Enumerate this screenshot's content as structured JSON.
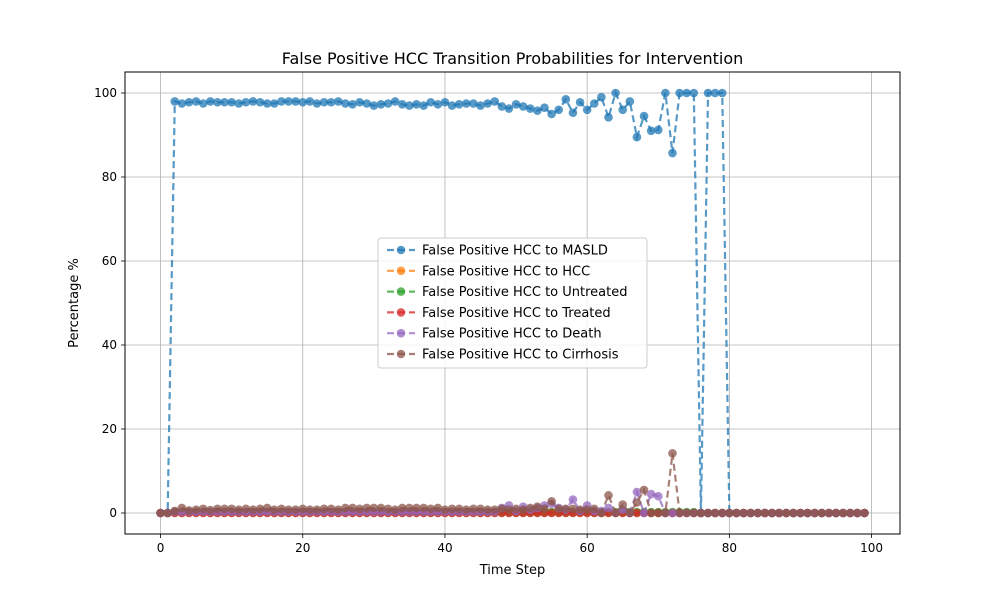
{
  "chart_data": {
    "type": "line",
    "title": "False Positive HCC Transition Probabilities for Intervention",
    "xlabel": "Time Step",
    "ylabel": "Percentage %",
    "xlim": [
      -5,
      104
    ],
    "ylim": [
      -5,
      105
    ],
    "xticks": [
      0,
      20,
      40,
      60,
      80,
      100
    ],
    "yticks": [
      0,
      20,
      40,
      60,
      80,
      100
    ],
    "grid": true,
    "legend_position": "center",
    "series": [
      {
        "name": "False Positive HCC to MASLD",
        "color": "#1f77b4",
        "x": [
          0,
          1,
          2,
          3,
          4,
          5,
          6,
          7,
          8,
          9,
          10,
          11,
          12,
          13,
          14,
          15,
          16,
          17,
          18,
          19,
          20,
          21,
          22,
          23,
          24,
          25,
          26,
          27,
          28,
          29,
          30,
          31,
          32,
          33,
          34,
          35,
          36,
          37,
          38,
          39,
          40,
          41,
          42,
          43,
          44,
          45,
          46,
          47,
          48,
          49,
          50,
          51,
          52,
          53,
          54,
          55,
          56,
          57,
          58,
          59,
          60,
          61,
          62,
          63,
          64,
          65,
          66,
          67,
          68,
          69,
          70,
          71,
          72,
          73,
          74,
          75,
          76,
          77,
          78,
          79,
          80,
          81,
          82,
          83,
          84,
          85,
          86,
          87,
          88,
          89,
          90,
          91,
          92,
          93,
          94,
          95,
          96,
          97,
          98,
          99
        ],
        "y": [
          0,
          0,
          98,
          97.5,
          97.8,
          98,
          97.5,
          98,
          97.8,
          97.8,
          97.8,
          97.5,
          97.8,
          98,
          97.8,
          97.5,
          97.5,
          98,
          98,
          98,
          97.8,
          98,
          97.5,
          97.8,
          97.8,
          98,
          97.5,
          97.3,
          97.8,
          97.5,
          97,
          97.3,
          97.5,
          98,
          97.3,
          97,
          97.3,
          97,
          97.8,
          97.3,
          97.8,
          97,
          97.3,
          97.5,
          97.5,
          97,
          97.5,
          98,
          96.8,
          96.3,
          97.3,
          96.8,
          96.3,
          95.8,
          96.5,
          95,
          96,
          98.5,
          95.3,
          97.8,
          96,
          97.5,
          99,
          94.2,
          100,
          96,
          98,
          89.5,
          94.5,
          91,
          91.2,
          100,
          85.7,
          100,
          100,
          100,
          0,
          100,
          100,
          100,
          0,
          0,
          0,
          0,
          0,
          0,
          0,
          0,
          0,
          0,
          0,
          0,
          0,
          0,
          0,
          0,
          0,
          0,
          0,
          0
        ]
      },
      {
        "name": "False Positive HCC to HCC",
        "color": "#ff7f0e",
        "x": [
          0,
          1,
          2,
          3,
          4,
          5,
          6,
          7,
          8,
          9,
          10,
          11,
          12,
          13,
          14,
          15,
          16,
          17,
          18,
          19,
          20,
          21,
          22,
          23,
          24,
          25,
          26,
          27,
          28,
          29,
          30,
          31,
          32,
          33,
          34,
          35,
          36,
          37,
          38,
          39,
          40,
          41,
          42,
          43,
          44,
          45,
          46,
          47,
          48,
          49,
          50,
          51,
          52,
          53,
          54,
          55,
          56,
          57,
          58,
          59,
          60,
          61,
          62,
          63,
          64,
          65,
          66,
          67,
          68,
          69,
          70,
          71,
          72,
          73,
          74,
          75,
          76,
          77,
          78,
          79,
          80,
          81,
          82,
          83,
          84,
          85,
          86,
          87,
          88,
          89,
          90,
          91,
          92,
          93,
          94,
          95,
          96,
          97,
          98,
          99
        ],
        "y": [
          0,
          0,
          0.1,
          0.1,
          0.1,
          0.1,
          0.1,
          0.1,
          0.1,
          0.1,
          0.1,
          0.1,
          0.1,
          0.1,
          0.1,
          0.1,
          0.1,
          0.1,
          0.1,
          0.1,
          0.1,
          0.1,
          0.1,
          0.1,
          0.1,
          0.1,
          0.1,
          0.1,
          0.1,
          0.1,
          0.1,
          0.1,
          0.1,
          0.1,
          0.1,
          0.1,
          0.1,
          0.1,
          0.1,
          0.1,
          0.1,
          0.1,
          0.1,
          0.1,
          0.1,
          0.1,
          0.1,
          0.1,
          0.1,
          0.1,
          0.1,
          0.1,
          0.1,
          0.1,
          0.1,
          0.1,
          0.1,
          0.1,
          0.1,
          0.1,
          0.1,
          0.1,
          0.1,
          0.1,
          0.1,
          0.1,
          0.1,
          0.1,
          0.1,
          0.1,
          0.1,
          0.1,
          0.1,
          0.1,
          0.1,
          0.1,
          0,
          0,
          0,
          0,
          0,
          0,
          0,
          0,
          0,
          0,
          0,
          0,
          0,
          0,
          0,
          0,
          0,
          0,
          0,
          0,
          0,
          0,
          0,
          0
        ]
      },
      {
        "name": "False Positive HCC to Untreated",
        "color": "#2ca02c",
        "x": [
          0,
          1,
          2,
          3,
          4,
          5,
          6,
          7,
          8,
          9,
          10,
          11,
          12,
          13,
          14,
          15,
          16,
          17,
          18,
          19,
          20,
          21,
          22,
          23,
          24,
          25,
          26,
          27,
          28,
          29,
          30,
          31,
          32,
          33,
          34,
          35,
          36,
          37,
          38,
          39,
          40,
          41,
          42,
          43,
          44,
          45,
          46,
          47,
          48,
          49,
          50,
          51,
          52,
          53,
          54,
          55,
          56,
          57,
          58,
          59,
          60,
          61,
          62,
          63,
          64,
          65,
          66,
          67,
          68,
          69,
          70,
          71,
          72,
          73,
          74,
          75,
          76,
          77,
          78,
          79,
          80,
          81,
          82,
          83,
          84,
          85,
          86,
          87,
          88,
          89,
          90,
          91,
          92,
          93,
          94,
          95,
          96,
          97,
          98,
          99
        ],
        "y": [
          0,
          0,
          0.2,
          0.2,
          0.2,
          0.2,
          0.2,
          0.2,
          0.2,
          0.2,
          0.2,
          0.2,
          0.2,
          0.2,
          0.2,
          0.2,
          0.2,
          0.2,
          0.2,
          0.2,
          0.2,
          0.2,
          0.2,
          0.2,
          0.2,
          0.2,
          0.2,
          0.2,
          0.2,
          0.2,
          0.2,
          0.2,
          0.2,
          0.2,
          0.2,
          0.2,
          0.2,
          0.2,
          0.2,
          0.2,
          0.2,
          0.2,
          0.2,
          0.2,
          0.2,
          0.2,
          0.2,
          0.2,
          0.2,
          0.2,
          0.2,
          0.2,
          0.2,
          0.2,
          0.2,
          0.2,
          0.2,
          0.2,
          0.2,
          0.2,
          0.2,
          0.2,
          0.2,
          0.2,
          0.2,
          0.2,
          0.2,
          0.2,
          0.2,
          0.2,
          0.2,
          0.2,
          0.2,
          0.2,
          0.2,
          0.2,
          0,
          0,
          0,
          0,
          0,
          0,
          0,
          0,
          0,
          0,
          0,
          0,
          0,
          0,
          0,
          0,
          0,
          0,
          0,
          0,
          0,
          0,
          0,
          0
        ]
      },
      {
        "name": "False Positive HCC to Treated",
        "color": "#d62728",
        "x": [
          0,
          1,
          2,
          3,
          4,
          5,
          6,
          7,
          8,
          9,
          10,
          11,
          12,
          13,
          14,
          15,
          16,
          17,
          18,
          19,
          20,
          21,
          22,
          23,
          24,
          25,
          26,
          27,
          28,
          29,
          30,
          31,
          32,
          33,
          34,
          35,
          36,
          37,
          38,
          39,
          40,
          41,
          42,
          43,
          44,
          45,
          46,
          47,
          48,
          49,
          50,
          51,
          52,
          53,
          54,
          55,
          56,
          57,
          58,
          59,
          60,
          61,
          62,
          63,
          64,
          65,
          66,
          67,
          68,
          69,
          70,
          71,
          72,
          73,
          74,
          75,
          76,
          77,
          78,
          79,
          80,
          81,
          82,
          83,
          84,
          85,
          86,
          87,
          88,
          89,
          90,
          91,
          92,
          93,
          94,
          95,
          96,
          97,
          98,
          99
        ],
        "y": [
          0,
          0,
          0,
          0,
          0,
          0,
          0,
          0,
          0,
          0,
          0,
          0,
          0,
          0,
          0,
          0,
          0,
          0,
          0,
          0,
          0,
          0,
          0,
          0,
          0,
          0,
          0,
          0,
          0,
          0,
          0,
          0,
          0,
          0,
          0,
          0,
          0,
          0,
          0,
          0,
          0,
          0,
          0,
          0,
          0,
          0,
          0,
          0,
          0,
          0,
          0,
          0,
          0,
          0,
          0,
          0,
          0,
          0,
          0,
          0,
          0,
          0,
          0,
          0,
          0,
          0,
          0,
          0,
          0,
          0,
          0,
          0,
          0,
          0,
          0,
          0,
          0,
          0,
          0,
          0,
          0,
          0,
          0,
          0,
          0,
          0,
          0,
          0,
          0,
          0,
          0,
          0,
          0,
          0,
          0,
          0,
          0,
          0,
          0,
          0
        ]
      },
      {
        "name": "False Positive HCC to Death",
        "color": "#9467bd",
        "x": [
          0,
          1,
          2,
          3,
          4,
          5,
          6,
          7,
          8,
          9,
          10,
          11,
          12,
          13,
          14,
          15,
          16,
          17,
          18,
          19,
          20,
          21,
          22,
          23,
          24,
          25,
          26,
          27,
          28,
          29,
          30,
          31,
          32,
          33,
          34,
          35,
          36,
          37,
          38,
          39,
          40,
          41,
          42,
          43,
          44,
          45,
          46,
          47,
          48,
          49,
          50,
          51,
          52,
          53,
          54,
          55,
          56,
          57,
          58,
          59,
          60,
          61,
          62,
          63,
          64,
          65,
          66,
          67,
          68,
          69,
          70,
          71,
          72,
          73,
          74,
          75,
          76,
          77,
          78,
          79,
          80,
          81,
          82,
          83,
          84,
          85,
          86,
          87,
          88,
          89,
          90,
          91,
          92,
          93,
          94,
          95,
          96,
          97,
          98,
          99
        ],
        "y": [
          0,
          0,
          0.3,
          0.3,
          0.3,
          0.3,
          0.3,
          0.3,
          0.3,
          0.3,
          0.3,
          0.3,
          0.3,
          0.3,
          0.3,
          0.3,
          0.3,
          0.3,
          0.3,
          0.3,
          0.3,
          0.3,
          0.3,
          0.3,
          0.3,
          0.3,
          0.3,
          0.3,
          0.3,
          0.3,
          0.3,
          0.3,
          0.3,
          0.3,
          0.3,
          0.3,
          0.3,
          0.3,
          0.3,
          0.3,
          0.3,
          0.3,
          0.3,
          0.3,
          0.3,
          0.3,
          0.3,
          0.3,
          1.2,
          1.8,
          0.5,
          1.5,
          0.8,
          1.2,
          1.8,
          2.2,
          1.2,
          0.8,
          3.2,
          0.5,
          1.8,
          0.5,
          0.5,
          1.2,
          0,
          0.8,
          0,
          5,
          0,
          4.5,
          4,
          0,
          0,
          0,
          0,
          0,
          0,
          0,
          0,
          0,
          0,
          0,
          0,
          0,
          0,
          0,
          0,
          0,
          0,
          0,
          0,
          0,
          0,
          0,
          0,
          0,
          0,
          0,
          0,
          0
        ]
      },
      {
        "name": "False Positive HCC to Cirrhosis",
        "color": "#8c564b",
        "x": [
          0,
          1,
          2,
          3,
          4,
          5,
          6,
          7,
          8,
          9,
          10,
          11,
          12,
          13,
          14,
          15,
          16,
          17,
          18,
          19,
          20,
          21,
          22,
          23,
          24,
          25,
          26,
          27,
          28,
          29,
          30,
          31,
          32,
          33,
          34,
          35,
          36,
          37,
          38,
          39,
          40,
          41,
          42,
          43,
          44,
          45,
          46,
          47,
          48,
          49,
          50,
          51,
          52,
          53,
          54,
          55,
          56,
          57,
          58,
          59,
          60,
          61,
          62,
          63,
          64,
          65,
          66,
          67,
          68,
          69,
          70,
          71,
          72,
          73,
          74,
          75,
          76,
          77,
          78,
          79,
          80,
          81,
          82,
          83,
          84,
          85,
          86,
          87,
          88,
          89,
          90,
          91,
          92,
          93,
          94,
          95,
          96,
          97,
          98,
          99
        ],
        "y": [
          0,
          0,
          0.5,
          1.2,
          0.6,
          0.8,
          1,
          0.7,
          1,
          1,
          1,
          0.8,
          1,
          0.8,
          1,
          1.2,
          0.8,
          1,
          0.8,
          0.8,
          1,
          0.8,
          0.8,
          1,
          1,
          0.8,
          1.2,
          1.2,
          1,
          1.2,
          1.2,
          1.2,
          1,
          0.8,
          1.2,
          1.2,
          1.2,
          1.2,
          1,
          1.2,
          0.8,
          1,
          1,
          0.8,
          1,
          1,
          0.8,
          0.8,
          1,
          0.8,
          1,
          0.8,
          1.2,
          1.5,
          1,
          2.8,
          1,
          1,
          1,
          0.8,
          0.8,
          1,
          0,
          4.2,
          0,
          2,
          0,
          2.5,
          5.5,
          0,
          0,
          0,
          14.2,
          0,
          0,
          0,
          0,
          0,
          0,
          0,
          0,
          0,
          0,
          0,
          0,
          0,
          0,
          0,
          0,
          0,
          0,
          0,
          0,
          0,
          0,
          0,
          0,
          0,
          0,
          0
        ]
      }
    ]
  }
}
